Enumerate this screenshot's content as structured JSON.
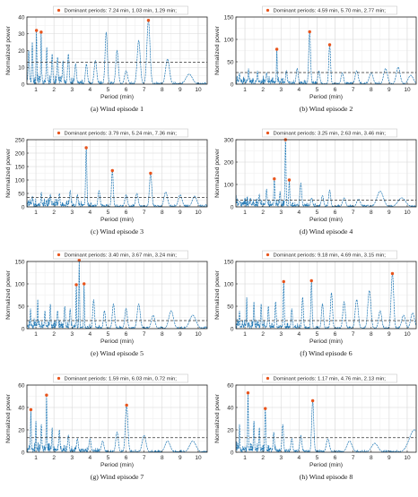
{
  "chart_data": [
    {
      "type": "line",
      "caption": "(a) Wind episode 1",
      "legend": "Dominant periods: 7.24 min, 1.03 min, 1.29 min;",
      "xlabel": "Period (min)",
      "ylabel": "Normalized power",
      "xlim": [
        0.5,
        10.5
      ],
      "ylim": [
        0,
        40
      ],
      "yticks": [
        0,
        10,
        20,
        30,
        40
      ],
      "xticks": [
        1,
        2,
        3,
        4,
        5,
        6,
        7,
        8,
        9,
        10
      ],
      "threshold": 13,
      "dominant": [
        {
          "x": 7.24,
          "y": 38
        },
        {
          "x": 1.03,
          "y": 32
        },
        {
          "x": 1.29,
          "y": 31
        }
      ],
      "peaks": [
        {
          "x": 0.6,
          "y": 20,
          "w": 0.05
        },
        {
          "x": 0.8,
          "y": 25,
          "w": 0.04
        },
        {
          "x": 1.03,
          "y": 32,
          "w": 0.03
        },
        {
          "x": 1.29,
          "y": 31,
          "w": 0.03
        },
        {
          "x": 1.6,
          "y": 22,
          "w": 0.04
        },
        {
          "x": 1.9,
          "y": 18,
          "w": 0.05
        },
        {
          "x": 2.2,
          "y": 16,
          "w": 0.05
        },
        {
          "x": 2.5,
          "y": 14,
          "w": 0.05
        },
        {
          "x": 2.8,
          "y": 18,
          "w": 0.06
        },
        {
          "x": 3.2,
          "y": 12,
          "w": 0.07
        },
        {
          "x": 3.8,
          "y": 12,
          "w": 0.08
        },
        {
          "x": 4.3,
          "y": 14,
          "w": 0.1
        },
        {
          "x": 4.9,
          "y": 31,
          "w": 0.09
        },
        {
          "x": 5.5,
          "y": 20,
          "w": 0.1
        },
        {
          "x": 6.0,
          "y": 8,
          "w": 0.12
        },
        {
          "x": 6.7,
          "y": 26,
          "w": 0.12
        },
        {
          "x": 7.24,
          "y": 38,
          "w": 0.12
        },
        {
          "x": 8.3,
          "y": 15,
          "w": 0.15
        },
        {
          "x": 9.5,
          "y": 6,
          "w": 0.25
        }
      ]
    },
    {
      "type": "line",
      "caption": "(b) Wind episode 2",
      "legend": "Dominant periods: 4.59 min, 5.70 min, 2.77 min;",
      "xlabel": "Period (min)",
      "ylabel": "Normalized power",
      "xlim": [
        0.5,
        10.5
      ],
      "ylim": [
        0,
        150
      ],
      "yticks": [
        0,
        50,
        100,
        150
      ],
      "xticks": [
        1,
        2,
        3,
        4,
        5,
        6,
        7,
        8,
        9,
        10
      ],
      "threshold": 26,
      "dominant": [
        {
          "x": 4.59,
          "y": 117
        },
        {
          "x": 5.7,
          "y": 88
        },
        {
          "x": 2.77,
          "y": 78
        }
      ],
      "peaks": [
        {
          "x": 0.7,
          "y": 25,
          "w": 0.04
        },
        {
          "x": 1.2,
          "y": 35,
          "w": 0.04
        },
        {
          "x": 1.7,
          "y": 30,
          "w": 0.04
        },
        {
          "x": 2.2,
          "y": 25,
          "w": 0.05
        },
        {
          "x": 2.77,
          "y": 78,
          "w": 0.03
        },
        {
          "x": 3.3,
          "y": 30,
          "w": 0.06
        },
        {
          "x": 3.9,
          "y": 35,
          "w": 0.08
        },
        {
          "x": 4.59,
          "y": 117,
          "w": 0.07
        },
        {
          "x": 5.1,
          "y": 30,
          "w": 0.08
        },
        {
          "x": 5.7,
          "y": 88,
          "w": 0.07
        },
        {
          "x": 6.4,
          "y": 25,
          "w": 0.1
        },
        {
          "x": 7.2,
          "y": 30,
          "w": 0.12
        },
        {
          "x": 8.0,
          "y": 25,
          "w": 0.15
        },
        {
          "x": 8.8,
          "y": 35,
          "w": 0.15
        },
        {
          "x": 9.5,
          "y": 38,
          "w": 0.15
        },
        {
          "x": 10.2,
          "y": 20,
          "w": 0.2
        }
      ]
    },
    {
      "type": "line",
      "caption": "(c) Wind episode 3",
      "legend": "Dominant periods: 3.79 min, 5.24 min, 7.36 min;",
      "xlabel": "Period (min)",
      "ylabel": "Normalized power",
      "xlim": [
        0.5,
        10.5
      ],
      "ylim": [
        0,
        250
      ],
      "yticks": [
        0,
        50,
        100,
        150,
        200,
        250
      ],
      "xticks": [
        1,
        2,
        3,
        4,
        5,
        6,
        7,
        8,
        9,
        10
      ],
      "threshold": 35,
      "dominant": [
        {
          "x": 3.79,
          "y": 220
        },
        {
          "x": 5.24,
          "y": 135
        },
        {
          "x": 7.36,
          "y": 125
        }
      ],
      "peaks": [
        {
          "x": 0.8,
          "y": 40,
          "w": 0.04
        },
        {
          "x": 1.3,
          "y": 55,
          "w": 0.04
        },
        {
          "x": 1.8,
          "y": 45,
          "w": 0.05
        },
        {
          "x": 2.3,
          "y": 50,
          "w": 0.05
        },
        {
          "x": 2.9,
          "y": 60,
          "w": 0.06
        },
        {
          "x": 3.3,
          "y": 45,
          "w": 0.06
        },
        {
          "x": 3.79,
          "y": 220,
          "w": 0.05
        },
        {
          "x": 4.5,
          "y": 60,
          "w": 0.08
        },
        {
          "x": 5.24,
          "y": 135,
          "w": 0.07
        },
        {
          "x": 6.0,
          "y": 45,
          "w": 0.1
        },
        {
          "x": 6.6,
          "y": 50,
          "w": 0.1
        },
        {
          "x": 7.36,
          "y": 125,
          "w": 0.09
        },
        {
          "x": 8.2,
          "y": 55,
          "w": 0.14
        },
        {
          "x": 9.0,
          "y": 45,
          "w": 0.15
        },
        {
          "x": 9.8,
          "y": 40,
          "w": 0.18
        }
      ]
    },
    {
      "type": "line",
      "caption": "(d) Wind episode 4",
      "legend": "Dominant periods: 3.25 min, 2.63 min, 3.46 min;",
      "xlabel": "Period (min)",
      "ylabel": "Normalized power",
      "xlim": [
        0.5,
        10.5
      ],
      "ylim": [
        0,
        300
      ],
      "yticks": [
        0,
        100,
        200,
        300
      ],
      "xticks": [
        1,
        2,
        3,
        4,
        5,
        6,
        7,
        8,
        9,
        10
      ],
      "threshold": 30,
      "dominant": [
        {
          "x": 3.25,
          "y": 300
        },
        {
          "x": 2.63,
          "y": 125
        },
        {
          "x": 3.46,
          "y": 120
        }
      ],
      "peaks": [
        {
          "x": 0.7,
          "y": 25,
          "w": 0.04
        },
        {
          "x": 1.3,
          "y": 40,
          "w": 0.04
        },
        {
          "x": 1.8,
          "y": 55,
          "w": 0.05
        },
        {
          "x": 2.2,
          "y": 80,
          "w": 0.05
        },
        {
          "x": 2.63,
          "y": 125,
          "w": 0.04
        },
        {
          "x": 2.95,
          "y": 70,
          "w": 0.04
        },
        {
          "x": 3.25,
          "y": 300,
          "w": 0.04
        },
        {
          "x": 3.46,
          "y": 120,
          "w": 0.04
        },
        {
          "x": 4.1,
          "y": 105,
          "w": 0.07
        },
        {
          "x": 4.7,
          "y": 40,
          "w": 0.08
        },
        {
          "x": 5.3,
          "y": 50,
          "w": 0.09
        },
        {
          "x": 5.7,
          "y": 75,
          "w": 0.08
        },
        {
          "x": 6.5,
          "y": 40,
          "w": 0.12
        },
        {
          "x": 7.3,
          "y": 35,
          "w": 0.14
        },
        {
          "x": 8.5,
          "y": 70,
          "w": 0.25
        },
        {
          "x": 9.7,
          "y": 40,
          "w": 0.3
        }
      ]
    },
    {
      "type": "line",
      "caption": "(e) Wind episode 5",
      "legend": "Dominant periods: 3.40 min, 3.67 min, 3.24 min;",
      "xlabel": "Period (min)",
      "ylabel": "Normalized power",
      "xlim": [
        0.5,
        10.5
      ],
      "ylim": [
        0,
        150
      ],
      "yticks": [
        0,
        50,
        100,
        150
      ],
      "xticks": [
        1,
        2,
        3,
        4,
        5,
        6,
        7,
        8,
        9,
        10
      ],
      "threshold": 18,
      "dominant": [
        {
          "x": 3.4,
          "y": 153
        },
        {
          "x": 3.67,
          "y": 100
        },
        {
          "x": 3.24,
          "y": 98
        }
      ],
      "peaks": [
        {
          "x": 0.7,
          "y": 45,
          "w": 0.03
        },
        {
          "x": 1.1,
          "y": 65,
          "w": 0.03
        },
        {
          "x": 1.5,
          "y": 40,
          "w": 0.04
        },
        {
          "x": 1.8,
          "y": 55,
          "w": 0.04
        },
        {
          "x": 2.2,
          "y": 40,
          "w": 0.05
        },
        {
          "x": 2.6,
          "y": 50,
          "w": 0.05
        },
        {
          "x": 2.9,
          "y": 45,
          "w": 0.05
        },
        {
          "x": 3.24,
          "y": 98,
          "w": 0.03
        },
        {
          "x": 3.4,
          "y": 153,
          "w": 0.03
        },
        {
          "x": 3.67,
          "y": 100,
          "w": 0.03
        },
        {
          "x": 4.2,
          "y": 65,
          "w": 0.07
        },
        {
          "x": 4.8,
          "y": 40,
          "w": 0.08
        },
        {
          "x": 5.3,
          "y": 55,
          "w": 0.09
        },
        {
          "x": 6.0,
          "y": 45,
          "w": 0.1
        },
        {
          "x": 6.7,
          "y": 55,
          "w": 0.12
        },
        {
          "x": 7.5,
          "y": 30,
          "w": 0.14
        },
        {
          "x": 8.5,
          "y": 40,
          "w": 0.18
        },
        {
          "x": 9.7,
          "y": 30,
          "w": 0.25
        }
      ]
    },
    {
      "type": "line",
      "caption": "(f) Wind episode 6",
      "legend": "Dominant periods: 9.18 min, 4.69 min, 3.15 min;",
      "xlabel": "Period (min)",
      "ylabel": "Normalized power",
      "xlim": [
        0.5,
        10.5
      ],
      "ylim": [
        0,
        150
      ],
      "yticks": [
        0,
        50,
        100,
        150
      ],
      "xticks": [
        1,
        2,
        3,
        4,
        5,
        6,
        7,
        8,
        9,
        10
      ],
      "threshold": 18,
      "dominant": [
        {
          "x": 9.18,
          "y": 123
        },
        {
          "x": 4.69,
          "y": 107
        },
        {
          "x": 3.15,
          "y": 105
        }
      ],
      "peaks": [
        {
          "x": 0.7,
          "y": 40,
          "w": 0.03
        },
        {
          "x": 1.1,
          "y": 70,
          "w": 0.03
        },
        {
          "x": 1.5,
          "y": 60,
          "w": 0.04
        },
        {
          "x": 1.9,
          "y": 55,
          "w": 0.04
        },
        {
          "x": 2.3,
          "y": 50,
          "w": 0.05
        },
        {
          "x": 2.7,
          "y": 60,
          "w": 0.05
        },
        {
          "x": 3.15,
          "y": 105,
          "w": 0.04
        },
        {
          "x": 3.6,
          "y": 45,
          "w": 0.05
        },
        {
          "x": 4.2,
          "y": 70,
          "w": 0.06
        },
        {
          "x": 4.69,
          "y": 107,
          "w": 0.05
        },
        {
          "x": 5.3,
          "y": 55,
          "w": 0.08
        },
        {
          "x": 5.8,
          "y": 80,
          "w": 0.08
        },
        {
          "x": 6.5,
          "y": 60,
          "w": 0.1
        },
        {
          "x": 7.2,
          "y": 65,
          "w": 0.12
        },
        {
          "x": 7.9,
          "y": 85,
          "w": 0.12
        },
        {
          "x": 8.5,
          "y": 40,
          "w": 0.12
        },
        {
          "x": 9.18,
          "y": 123,
          "w": 0.1
        },
        {
          "x": 9.8,
          "y": 30,
          "w": 0.15
        },
        {
          "x": 10.3,
          "y": 35,
          "w": 0.15
        }
      ]
    },
    {
      "type": "line",
      "caption": "(g) Wind episode 7",
      "legend": "Dominant periods: 1.59 min, 6.03 min, 0.72 min;",
      "xlabel": "Period (min)",
      "ylabel": "Normalized power",
      "xlim": [
        0.5,
        10.5
      ],
      "ylim": [
        0,
        60
      ],
      "yticks": [
        0,
        20,
        40,
        60
      ],
      "xticks": [
        1,
        2,
        3,
        4,
        5,
        6,
        7,
        8,
        9,
        10
      ],
      "threshold": 13,
      "dominant": [
        {
          "x": 1.59,
          "y": 51
        },
        {
          "x": 6.03,
          "y": 42
        },
        {
          "x": 0.72,
          "y": 38
        }
      ],
      "peaks": [
        {
          "x": 0.72,
          "y": 38,
          "w": 0.03
        },
        {
          "x": 1.0,
          "y": 28,
          "w": 0.03
        },
        {
          "x": 1.3,
          "y": 25,
          "w": 0.04
        },
        {
          "x": 1.59,
          "y": 51,
          "w": 0.03
        },
        {
          "x": 1.9,
          "y": 22,
          "w": 0.04
        },
        {
          "x": 2.3,
          "y": 20,
          "w": 0.05
        },
        {
          "x": 2.8,
          "y": 15,
          "w": 0.06
        },
        {
          "x": 3.3,
          "y": 12,
          "w": 0.07
        },
        {
          "x": 4.0,
          "y": 12,
          "w": 0.08
        },
        {
          "x": 4.7,
          "y": 10,
          "w": 0.1
        },
        {
          "x": 5.5,
          "y": 18,
          "w": 0.1
        },
        {
          "x": 6.03,
          "y": 42,
          "w": 0.1
        },
        {
          "x": 7.0,
          "y": 15,
          "w": 0.15
        },
        {
          "x": 8.3,
          "y": 10,
          "w": 0.2
        },
        {
          "x": 9.7,
          "y": 10,
          "w": 0.25
        }
      ]
    },
    {
      "type": "line",
      "caption": "(h) Wind episode 8",
      "legend": "Dominant periods: 1.17 min, 4.76 min, 2.13 min;",
      "xlabel": "Period (min)",
      "ylabel": "Normalized power",
      "xlim": [
        0.5,
        10.5
      ],
      "ylim": [
        0,
        60
      ],
      "yticks": [
        0,
        20,
        40,
        60
      ],
      "xticks": [
        1,
        2,
        3,
        4,
        5,
        6,
        7,
        8,
        9,
        10
      ],
      "threshold": 13,
      "dominant": [
        {
          "x": 1.17,
          "y": 53
        },
        {
          "x": 4.76,
          "y": 46
        },
        {
          "x": 2.13,
          "y": 39
        }
      ],
      "peaks": [
        {
          "x": 0.7,
          "y": 25,
          "w": 0.03
        },
        {
          "x": 1.17,
          "y": 53,
          "w": 0.03
        },
        {
          "x": 1.5,
          "y": 28,
          "w": 0.04
        },
        {
          "x": 1.8,
          "y": 22,
          "w": 0.04
        },
        {
          "x": 2.13,
          "y": 39,
          "w": 0.04
        },
        {
          "x": 2.6,
          "y": 18,
          "w": 0.05
        },
        {
          "x": 3.1,
          "y": 25,
          "w": 0.06
        },
        {
          "x": 3.6,
          "y": 12,
          "w": 0.07
        },
        {
          "x": 4.1,
          "y": 15,
          "w": 0.08
        },
        {
          "x": 4.76,
          "y": 46,
          "w": 0.08
        },
        {
          "x": 5.6,
          "y": 12,
          "w": 0.12
        },
        {
          "x": 6.8,
          "y": 10,
          "w": 0.2
        },
        {
          "x": 8.2,
          "y": 8,
          "w": 0.25
        },
        {
          "x": 10.4,
          "y": 20,
          "w": 0.4
        }
      ]
    }
  ],
  "colors": {
    "series": "#1f77b4",
    "dominant": "#e8541c",
    "threshold": "#333333",
    "grid": "#d9d9d9",
    "axis": "#262626"
  }
}
